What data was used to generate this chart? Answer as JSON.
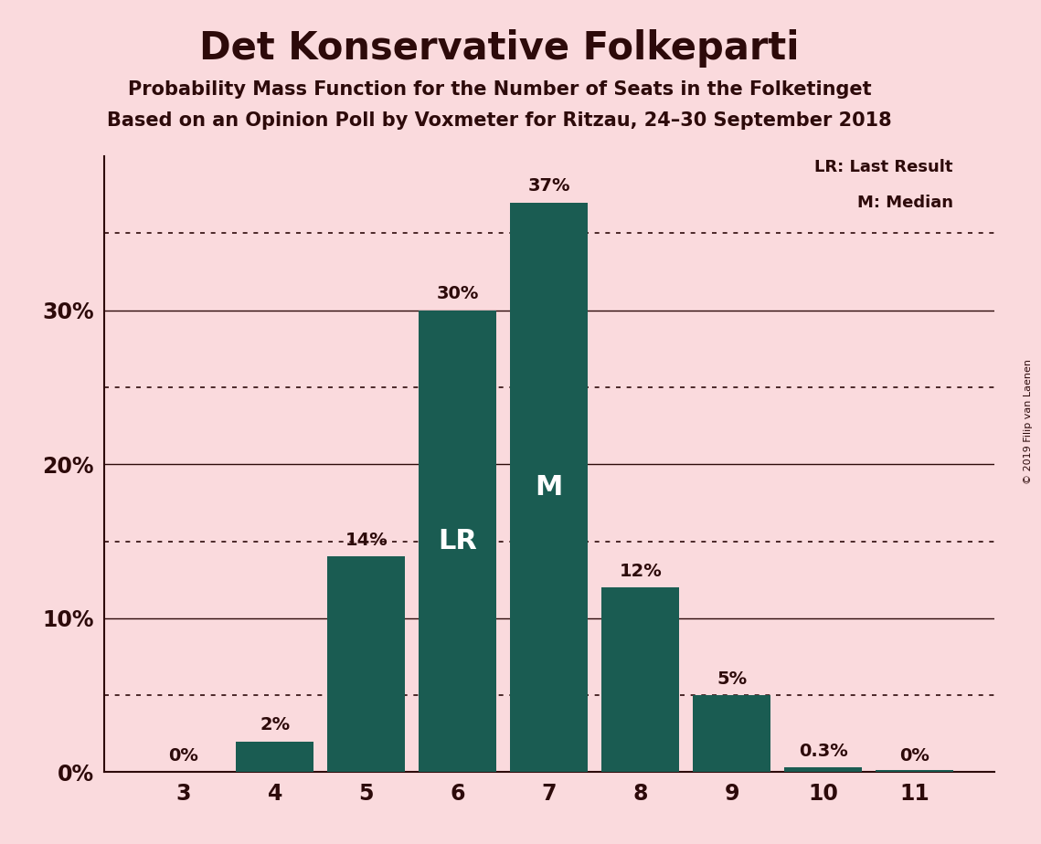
{
  "title": "Det Konservative Folkeparti",
  "subtitle1": "Probability Mass Function for the Number of Seats in the Folketinget",
  "subtitle2": "Based on an Opinion Poll by Voxmeter for Ritzau, 24–30 September 2018",
  "copyright": "© 2019 Filip van Laenen",
  "categories": [
    3,
    4,
    5,
    6,
    7,
    8,
    9,
    10,
    11
  ],
  "values": [
    0.0,
    2.0,
    14.0,
    30.0,
    37.0,
    12.0,
    5.0,
    0.3,
    0.0
  ],
  "bar_values": [
    0.0,
    2.0,
    14.0,
    30.0,
    37.0,
    12.0,
    5.0,
    0.3,
    0.15
  ],
  "labels": [
    "0%",
    "2%",
    "14%",
    "30%",
    "37%",
    "12%",
    "5%",
    "0.3%",
    "0%"
  ],
  "bar_color": "#1a5c52",
  "background_color": "#fadadd",
  "text_color": "#2d0a0a",
  "lr_bar_idx": 3,
  "median_bar_idx": 4,
  "lr_label": "LR",
  "median_label": "M",
  "legend_lr": "LR: Last Result",
  "legend_m": "M: Median",
  "yticks": [
    0,
    10,
    20,
    30
  ],
  "ylim": [
    0,
    40
  ],
  "dotted_lines": [
    5,
    15,
    25,
    35
  ],
  "solid_lines": [
    0,
    10,
    20,
    30
  ]
}
